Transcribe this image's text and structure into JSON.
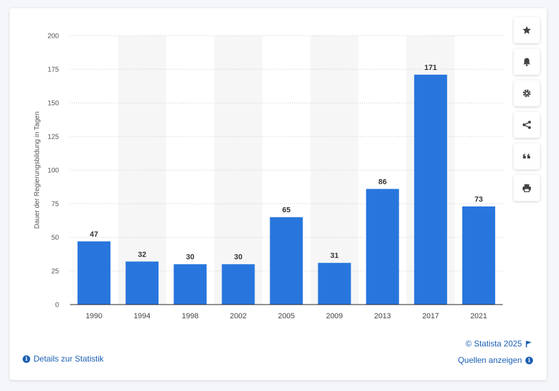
{
  "colors": {
    "bar": "#2876dd",
    "accent": "#1a5fb4",
    "grid": "#c8c8c8"
  },
  "toolbar": {
    "buttons": [
      {
        "name": "favorite-button",
        "icon": "star-icon"
      },
      {
        "name": "notification-button",
        "icon": "bell-icon"
      },
      {
        "name": "settings-button",
        "icon": "gear-icon"
      },
      {
        "name": "share-button",
        "icon": "share-icon"
      },
      {
        "name": "cite-button",
        "icon": "quote-icon"
      },
      {
        "name": "print-button",
        "icon": "print-icon"
      }
    ]
  },
  "footer": {
    "details_label": "Details zur Statistik",
    "copyright": "© Statista 2025",
    "sources_label": "Quellen anzeigen"
  },
  "chart_data": {
    "type": "bar",
    "categories": [
      "1990",
      "1994",
      "1998",
      "2002",
      "2005",
      "2009",
      "2013",
      "2017",
      "2021"
    ],
    "values": [
      47,
      32,
      30,
      30,
      65,
      31,
      86,
      171,
      73
    ],
    "xlabel": "",
    "ylabel": "Dauer der Regierungsbildung in Tagen",
    "ylim": [
      0,
      200
    ],
    "yticks": [
      0,
      25,
      50,
      75,
      100,
      125,
      150,
      175,
      200
    ],
    "grid": true,
    "data_labels": true
  }
}
